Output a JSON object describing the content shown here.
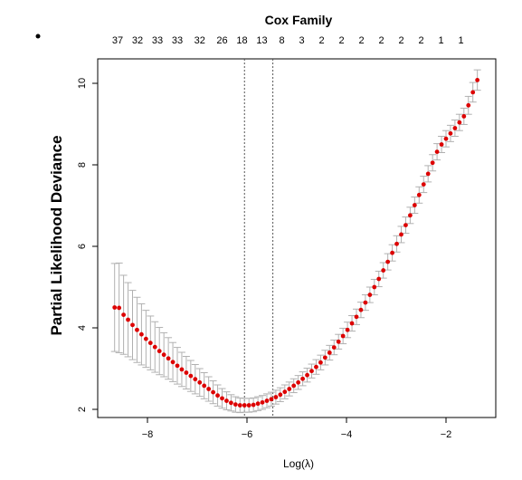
{
  "chart_data": {
    "type": "scatter",
    "title": "Cox Family",
    "xlabel": "Log(λ)",
    "ylabel": "Partial Likelihood Deviance",
    "xlim": [
      -9.0,
      -1.0
    ],
    "ylim": [
      1.8,
      10.6
    ],
    "x_ticks": [
      -8,
      -6,
      -4,
      -2
    ],
    "y_ticks": [
      2,
      4,
      6,
      8,
      10
    ],
    "top_axis_labels": [
      "37",
      "32",
      "33",
      "33",
      "32",
      "26",
      "18",
      "13",
      "8",
      "3",
      "2",
      "2",
      "2",
      "2",
      "2",
      "2",
      "1",
      "1"
    ],
    "top_axis_positions": [
      -8.6,
      -8.2,
      -7.8,
      -7.4,
      -6.95,
      -6.5,
      -6.1,
      -5.7,
      -5.3,
      -4.9,
      -4.5,
      -4.1,
      -3.7,
      -3.3,
      -2.9,
      -2.5,
      -2.1,
      -1.7
    ],
    "vlines": [
      -6.05,
      -5.48
    ],
    "point_color": "#dd0000",
    "errorbar_color": "#b0b0b0",
    "series": [
      {
        "x": [
          -8.66,
          -8.57,
          -8.48,
          -8.39,
          -8.3,
          -8.21,
          -8.12,
          -8.03,
          -7.94,
          -7.85,
          -7.76,
          -7.67,
          -7.58,
          -7.49,
          -7.4,
          -7.31,
          -7.22,
          -7.13,
          -7.04,
          -6.95,
          -6.86,
          -6.77,
          -6.68,
          -6.59,
          -6.5,
          -6.41,
          -6.32,
          -6.23,
          -6.14,
          -6.05,
          -5.96,
          -5.87,
          -5.78,
          -5.69,
          -5.6,
          -5.51,
          -5.42,
          -5.33,
          -5.24,
          -5.15,
          -5.06,
          -4.97,
          -4.88,
          -4.79,
          -4.7,
          -4.61,
          -4.52,
          -4.43,
          -4.34,
          -4.25,
          -4.16,
          -4.07,
          -3.98,
          -3.89,
          -3.8,
          -3.71,
          -3.62,
          -3.53,
          -3.44,
          -3.35,
          -3.26,
          -3.17,
          -3.08,
          -2.99,
          -2.9,
          -2.81,
          -2.72,
          -2.63,
          -2.54,
          -2.45,
          -2.36,
          -2.27,
          -2.18,
          -2.09,
          -2.0,
          -1.91,
          -1.82,
          -1.73,
          -1.64,
          -1.55,
          -1.46,
          -1.37
        ],
        "y": [
          4.5,
          4.49,
          4.32,
          4.2,
          4.07,
          3.95,
          3.84,
          3.73,
          3.63,
          3.53,
          3.43,
          3.34,
          3.25,
          3.16,
          3.07,
          2.98,
          2.9,
          2.82,
          2.74,
          2.66,
          2.58,
          2.5,
          2.42,
          2.34,
          2.27,
          2.21,
          2.16,
          2.12,
          2.1,
          2.1,
          2.1,
          2.11,
          2.14,
          2.17,
          2.21,
          2.25,
          2.3,
          2.36,
          2.43,
          2.5,
          2.58,
          2.66,
          2.75,
          2.84,
          2.94,
          3.04,
          3.15,
          3.27,
          3.39,
          3.52,
          3.66,
          3.8,
          3.95,
          4.11,
          4.27,
          4.44,
          4.62,
          4.81,
          5.0,
          5.2,
          5.41,
          5.62,
          5.84,
          6.06,
          6.29,
          6.52,
          6.76,
          7.01,
          7.26,
          7.52,
          7.78,
          8.05,
          8.32,
          8.5,
          8.64,
          8.77,
          8.9,
          9.04,
          9.19,
          9.46,
          9.78,
          10.08
        ],
        "se": [
          1.08,
          1.1,
          0.97,
          0.91,
          0.85,
          0.8,
          0.75,
          0.7,
          0.66,
          0.62,
          0.58,
          0.54,
          0.51,
          0.48,
          0.45,
          0.42,
          0.4,
          0.38,
          0.36,
          0.34,
          0.32,
          0.3,
          0.28,
          0.26,
          0.24,
          0.22,
          0.2,
          0.19,
          0.18,
          0.17,
          0.17,
          0.17,
          0.17,
          0.17,
          0.17,
          0.17,
          0.17,
          0.17,
          0.17,
          0.17,
          0.17,
          0.17,
          0.17,
          0.17,
          0.17,
          0.18,
          0.18,
          0.18,
          0.18,
          0.18,
          0.18,
          0.19,
          0.19,
          0.19,
          0.19,
          0.19,
          0.19,
          0.19,
          0.19,
          0.19,
          0.19,
          0.2,
          0.2,
          0.2,
          0.2,
          0.2,
          0.2,
          0.2,
          0.2,
          0.2,
          0.2,
          0.2,
          0.2,
          0.2,
          0.2,
          0.2,
          0.2,
          0.2,
          0.2,
          0.22,
          0.24,
          0.25
        ]
      }
    ]
  }
}
